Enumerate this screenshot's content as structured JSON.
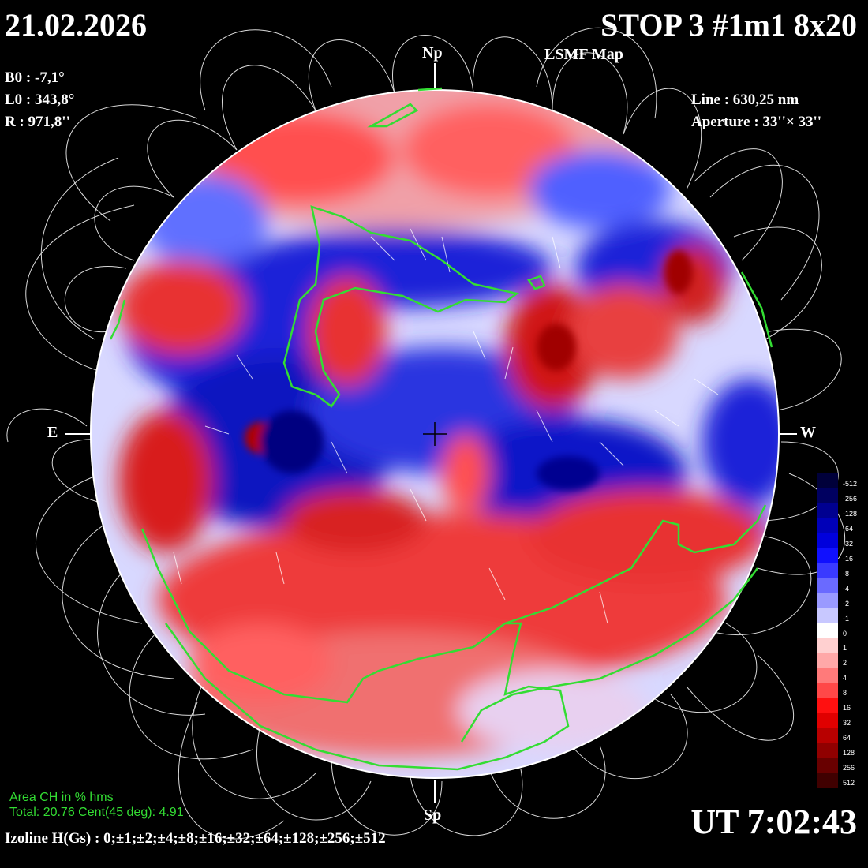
{
  "header": {
    "date": "21.02.2026",
    "title": "STOP 3 #1m1 8x20",
    "subtitle": "LSMF  Map"
  },
  "params": {
    "b0": "B0 : -7,1°",
    "l0": "L0 : 343,8°",
    "r": "R  : 971,8''",
    "line": "Line :  630,25 nm",
    "aperture": "Aperture : 33''× 33''"
  },
  "directions": {
    "north": "Np",
    "south": "Sp",
    "east": "E",
    "west": "W"
  },
  "time": "UT 7:02:43",
  "izoline": "Izoline H(Gs) : 0;±1;±2;±4;±8;±16;±32;±64;±128;±256;±512",
  "coronal_hole": {
    "title": "Area CH in % hms",
    "values": "Total: 20.76    Cent(45 deg): 4.91"
  },
  "colorbar": {
    "labels": [
      "-512",
      "-256",
      "-128",
      "-64",
      "-32",
      "-16",
      "-8",
      "-4",
      "-2",
      "-1",
      "0",
      "1",
      "2",
      "4",
      "8",
      "16",
      "32",
      "64",
      "128",
      "256",
      "512"
    ],
    "colors": [
      "#00003a",
      "#000060",
      "#000090",
      "#0000b8",
      "#0000dc",
      "#1010ff",
      "#3a3aff",
      "#6a6aff",
      "#9a9aff",
      "#c8c8ff",
      "#ffffff",
      "#ffd0d0",
      "#ffa8a8",
      "#ff7a7a",
      "#ff4848",
      "#ff1010",
      "#e00000",
      "#b80000",
      "#900000",
      "#680000",
      "#400000"
    ]
  },
  "colors": {
    "background": "#000000",
    "coronal_hole_contour": "#33dd33",
    "positive_field": "#e02020",
    "negative_field": "#1020d0"
  }
}
